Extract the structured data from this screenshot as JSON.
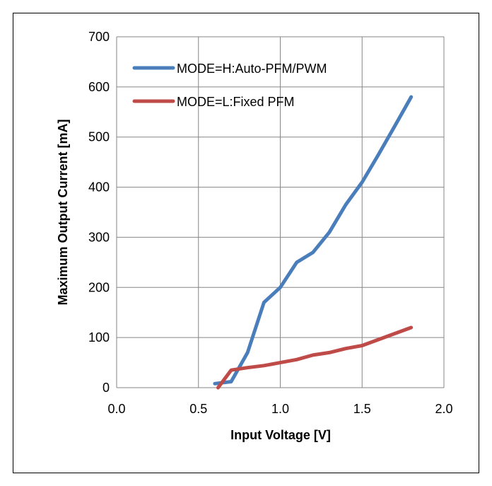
{
  "chart_data": {
    "type": "line",
    "xlabel": "Input Voltage [V]",
    "ylabel": "Maximum Output Current [mA]",
    "xlim": [
      0,
      2
    ],
    "ylim": [
      0,
      700
    ],
    "x_ticks": [
      "0.0",
      "0.5",
      "1.0",
      "1.5",
      "2.0"
    ],
    "y_ticks": [
      "0",
      "100",
      "200",
      "300",
      "400",
      "500",
      "600",
      "700"
    ],
    "grid": true,
    "legend_position": "top-left",
    "series": [
      {
        "name": "MODE=H:Auto-PFM/PWM",
        "color": "#4a7ebb",
        "x": [
          0.6,
          0.7,
          0.8,
          0.9,
          1.0,
          1.1,
          1.2,
          1.3,
          1.4,
          1.5,
          1.6,
          1.7,
          1.8
        ],
        "y": [
          8,
          12,
          70,
          170,
          200,
          250,
          270,
          310,
          365,
          410,
          465,
          522,
          580
        ]
      },
      {
        "name": "MODE=L:Fixed PFM",
        "color": "#be4b48",
        "x": [
          0.62,
          0.7,
          0.8,
          0.9,
          1.0,
          1.1,
          1.2,
          1.3,
          1.4,
          1.5,
          1.6,
          1.7,
          1.8
        ],
        "y": [
          0,
          35,
          40,
          44,
          50,
          56,
          65,
          70,
          78,
          84,
          96,
          108,
          120
        ]
      }
    ]
  }
}
